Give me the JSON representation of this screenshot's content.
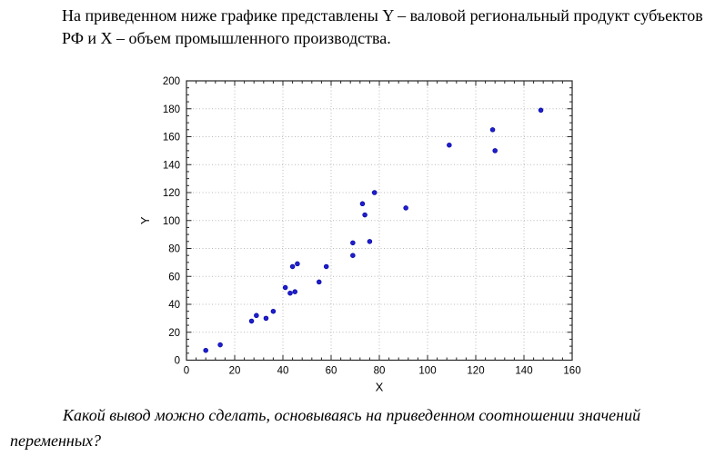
{
  "page": {
    "background": "#ffffff"
  },
  "header": {
    "text": "На приведенном ниже графике представлены Y – валовой региональный продукт субъектов РФ и X – объем промышленного производства."
  },
  "question": {
    "text": "Какой вывод можно сделать, основываясь на приведенном соотношении значений переменных?"
  },
  "chart_data": {
    "type": "scatter",
    "title": "",
    "xlabel": "X",
    "ylabel": "Y",
    "xlim": [
      0,
      160
    ],
    "ylim": [
      0,
      200
    ],
    "x_ticks": [
      0,
      20,
      40,
      60,
      80,
      100,
      120,
      140,
      160
    ],
    "y_ticks": [
      0,
      20,
      40,
      60,
      80,
      100,
      120,
      140,
      160,
      180,
      200
    ],
    "x_minor_step": 4,
    "y_minor_step": 5,
    "grid": "dotted",
    "legend": "none",
    "colors": {
      "marker_fill": "#1f1fce",
      "marker_stroke": "#00009e",
      "grid": "#b9b9b9",
      "frame": "#262626",
      "tick_text": "#000000"
    },
    "points": [
      [
        8,
        7
      ],
      [
        14,
        11
      ],
      [
        27,
        28
      ],
      [
        29,
        32
      ],
      [
        33,
        30
      ],
      [
        36,
        35
      ],
      [
        41,
        52
      ],
      [
        43,
        48
      ],
      [
        45,
        49
      ],
      [
        44,
        67
      ],
      [
        46,
        69
      ],
      [
        55,
        56
      ],
      [
        58,
        67
      ],
      [
        69,
        75
      ],
      [
        69,
        84
      ],
      [
        73,
        112
      ],
      [
        74,
        104
      ],
      [
        76,
        85
      ],
      [
        78,
        120
      ],
      [
        91,
        109
      ],
      [
        109,
        154
      ],
      [
        127,
        165
      ],
      [
        128,
        150
      ],
      [
        147,
        179
      ]
    ]
  }
}
